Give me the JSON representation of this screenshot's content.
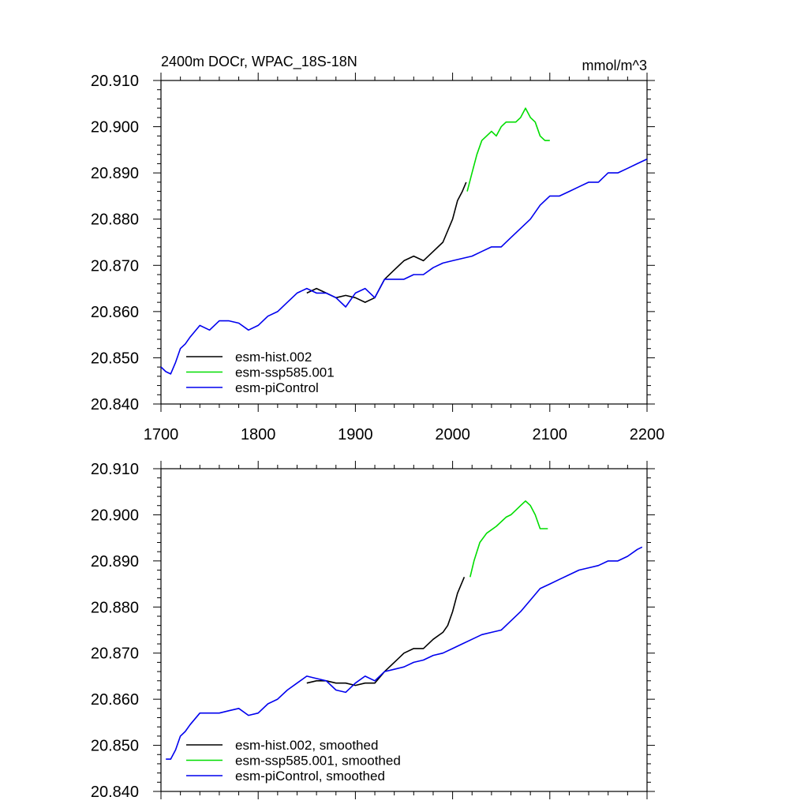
{
  "chart_data": [
    {
      "type": "line",
      "title": "2400m DOCr, WPAC_18S-18N",
      "units": "mmol/m^3",
      "xlabel": "",
      "ylabel": "",
      "xlim": [
        1700,
        2200
      ],
      "ylim": [
        20.84,
        20.91
      ],
      "x_ticks": [
        "1700",
        "1800",
        "1900",
        "2000",
        "2100",
        "2200"
      ],
      "y_ticks": [
        "20.840",
        "20.850",
        "20.860",
        "20.870",
        "20.880",
        "20.890",
        "20.900",
        "20.910"
      ],
      "legend_position": "bottom-left",
      "series": [
        {
          "name": "esm-hist.002",
          "color": "#000000",
          "x": [
            1850,
            1860,
            1870,
            1880,
            1890,
            1900,
            1910,
            1920,
            1930,
            1940,
            1950,
            1960,
            1970,
            1980,
            1990,
            2000,
            2005,
            2010,
            2014
          ],
          "y": [
            20.864,
            20.865,
            20.864,
            20.863,
            20.8635,
            20.863,
            20.862,
            20.863,
            20.867,
            20.869,
            20.871,
            20.872,
            20.871,
            20.873,
            20.875,
            20.88,
            20.884,
            20.886,
            20.888
          ]
        },
        {
          "name": "esm-ssp585.001",
          "color": "#00dd00",
          "x": [
            2015,
            2020,
            2025,
            2030,
            2035,
            2040,
            2045,
            2050,
            2055,
            2060,
            2065,
            2070,
            2075,
            2080,
            2085,
            2090,
            2095,
            2100
          ],
          "y": [
            20.886,
            20.89,
            20.894,
            20.897,
            20.898,
            20.899,
            20.898,
            20.9,
            20.901,
            20.901,
            20.901,
            20.902,
            20.904,
            20.902,
            20.901,
            20.898,
            20.897,
            20.897
          ]
        },
        {
          "name": "esm-piControl",
          "color": "#0000ee",
          "x": [
            1700,
            1705,
            1710,
            1715,
            1720,
            1725,
            1730,
            1740,
            1750,
            1760,
            1770,
            1780,
            1790,
            1800,
            1810,
            1820,
            1830,
            1840,
            1850,
            1860,
            1870,
            1880,
            1890,
            1900,
            1910,
            1920,
            1930,
            1940,
            1950,
            1960,
            1970,
            1980,
            1990,
            2000,
            2010,
            2020,
            2030,
            2040,
            2050,
            2060,
            2070,
            2080,
            2090,
            2100,
            2110,
            2120,
            2130,
            2140,
            2150,
            2160,
            2170,
            2180,
            2190,
            2200
          ],
          "y": [
            20.848,
            20.847,
            20.8465,
            20.849,
            20.852,
            20.853,
            20.8545,
            20.857,
            20.856,
            20.858,
            20.858,
            20.8575,
            20.856,
            20.857,
            20.859,
            20.86,
            20.862,
            20.864,
            20.865,
            20.864,
            20.864,
            20.863,
            20.861,
            20.864,
            20.865,
            20.863,
            20.867,
            20.867,
            20.867,
            20.868,
            20.868,
            20.8695,
            20.8705,
            20.871,
            20.8715,
            20.872,
            20.873,
            20.874,
            20.874,
            20.876,
            20.878,
            20.88,
            20.883,
            20.885,
            20.885,
            20.886,
            20.887,
            20.888,
            20.888,
            20.89,
            20.89,
            20.891,
            20.892,
            20.893
          ]
        }
      ]
    },
    {
      "type": "line",
      "title": "",
      "xlabel": "",
      "ylabel": "",
      "xlim": [
        1700,
        2200
      ],
      "ylim": [
        20.84,
        20.91
      ],
      "x_ticks": [],
      "y_ticks": [
        "20.840",
        "20.850",
        "20.860",
        "20.870",
        "20.880",
        "20.890",
        "20.900",
        "20.910"
      ],
      "legend_position": "bottom-left",
      "series": [
        {
          "name": "esm-hist.002, smoothed",
          "color": "#000000",
          "x": [
            1850,
            1860,
            1870,
            1880,
            1890,
            1900,
            1910,
            1920,
            1930,
            1940,
            1950,
            1960,
            1970,
            1980,
            1990,
            1995,
            2000,
            2005,
            2012
          ],
          "y": [
            20.8635,
            20.864,
            20.864,
            20.8635,
            20.8635,
            20.863,
            20.8635,
            20.8635,
            20.866,
            20.868,
            20.87,
            20.871,
            20.871,
            20.873,
            20.8745,
            20.876,
            20.879,
            20.883,
            20.8865
          ]
        },
        {
          "name": "esm-ssp585.001, smoothed",
          "color": "#00dd00",
          "x": [
            2018,
            2022,
            2028,
            2035,
            2045,
            2055,
            2060,
            2065,
            2070,
            2075,
            2080,
            2085,
            2090,
            2095,
            2098
          ],
          "y": [
            20.8865,
            20.89,
            20.894,
            20.896,
            20.8975,
            20.8995,
            20.9,
            20.901,
            20.902,
            20.903,
            20.902,
            20.9,
            20.897,
            20.897,
            20.897
          ]
        },
        {
          "name": "esm-piControl, smoothed",
          "color": "#0000ee",
          "x": [
            1705,
            1710,
            1715,
            1720,
            1725,
            1730,
            1740,
            1750,
            1760,
            1770,
            1780,
            1790,
            1800,
            1810,
            1820,
            1830,
            1840,
            1850,
            1860,
            1870,
            1880,
            1890,
            1900,
            1910,
            1920,
            1930,
            1940,
            1950,
            1960,
            1970,
            1980,
            1990,
            2000,
            2010,
            2020,
            2030,
            2040,
            2050,
            2060,
            2070,
            2080,
            2090,
            2100,
            2110,
            2120,
            2130,
            2140,
            2150,
            2160,
            2170,
            2180,
            2190,
            2195
          ],
          "y": [
            20.847,
            20.847,
            20.849,
            20.852,
            20.853,
            20.8545,
            20.857,
            20.857,
            20.857,
            20.8575,
            20.858,
            20.8565,
            20.857,
            20.859,
            20.86,
            20.862,
            20.8635,
            20.865,
            20.8645,
            20.864,
            20.862,
            20.8615,
            20.8635,
            20.865,
            20.864,
            20.866,
            20.8665,
            20.867,
            20.868,
            20.8685,
            20.8695,
            20.87,
            20.871,
            20.872,
            20.873,
            20.874,
            20.8745,
            20.875,
            20.877,
            20.879,
            20.8815,
            20.884,
            20.885,
            20.886,
            20.887,
            20.888,
            20.8885,
            20.889,
            20.89,
            20.89,
            20.891,
            20.8925,
            20.893
          ]
        }
      ]
    }
  ]
}
